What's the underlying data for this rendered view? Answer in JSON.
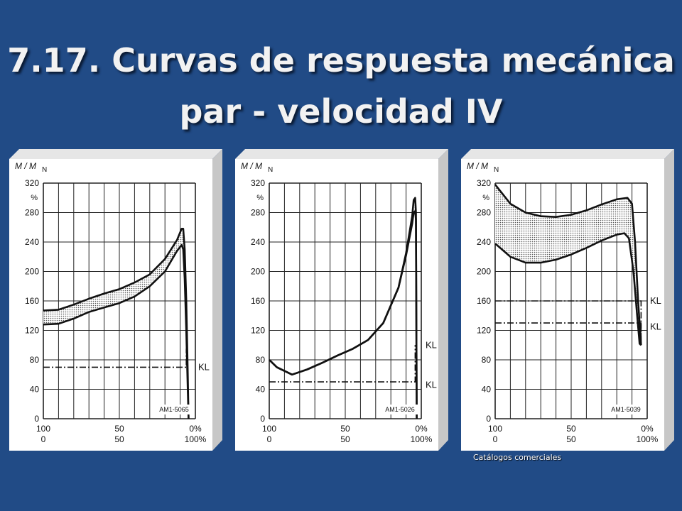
{
  "title": {
    "line1": "7.17. Curvas de respuesta mecánica",
    "line2": "par - velocidad IV"
  },
  "caption": "Catálogos comerciales",
  "colors": {
    "background": "#214b86",
    "panel": "#ffffff",
    "panel_edge": "#c7c7c7",
    "hatch": "#cfcfcf"
  },
  "axis_common": {
    "ylabel_main": "M / M",
    "ylabel_sub": "N",
    "percent_label": "%",
    "y_ticks": [
      "320",
      "280",
      "240",
      "200",
      "160",
      "120",
      "80",
      "40",
      "0"
    ],
    "x_ticks_top": [
      "100",
      "50",
      "0%"
    ],
    "x_ticks_bottom": [
      "0",
      "50",
      "100%"
    ]
  },
  "chart_data": [
    {
      "type": "area",
      "code": "AM1-5065",
      "ylim": [
        0,
        320
      ],
      "xlim": [
        0,
        100
      ],
      "grid": true,
      "x_axis": "speed % (bottom), slip % (top)",
      "upper_curve": [
        [
          0,
          147
        ],
        [
          10,
          148
        ],
        [
          20,
          155
        ],
        [
          30,
          163
        ],
        [
          40,
          170
        ],
        [
          50,
          176
        ],
        [
          60,
          185
        ],
        [
          70,
          196
        ],
        [
          80,
          217
        ],
        [
          88,
          243
        ],
        [
          91,
          258
        ],
        [
          92,
          258
        ],
        [
          93,
          230
        ],
        [
          94,
          160
        ],
        [
          95,
          60
        ],
        [
          95.5,
          0
        ]
      ],
      "lower_curve": [
        [
          0,
          128
        ],
        [
          10,
          129
        ],
        [
          20,
          136
        ],
        [
          30,
          145
        ],
        [
          40,
          151
        ],
        [
          50,
          157
        ],
        [
          60,
          166
        ],
        [
          70,
          180
        ],
        [
          80,
          200
        ],
        [
          88,
          228
        ],
        [
          91,
          236
        ],
        [
          92,
          230
        ],
        [
          93,
          190
        ],
        [
          94,
          120
        ],
        [
          95,
          40
        ],
        [
          95.5,
          0
        ]
      ],
      "load_curves": [
        {
          "label": "KL",
          "points": [
            [
              0,
              70
            ],
            [
              94,
              70
            ],
            [
              94,
              95
            ]
          ]
        }
      ]
    },
    {
      "type": "line",
      "code": "AM1-5026",
      "ylim": [
        0,
        320
      ],
      "xlim": [
        0,
        100
      ],
      "grid": true,
      "x_axis": "speed % (bottom), slip % (top)",
      "upper_curve": [
        [
          0,
          80
        ],
        [
          5,
          70
        ],
        [
          15,
          60
        ],
        [
          25,
          67
        ],
        [
          35,
          76
        ],
        [
          45,
          86
        ],
        [
          55,
          95
        ],
        [
          65,
          107
        ],
        [
          75,
          130
        ],
        [
          85,
          178
        ],
        [
          90,
          225
        ],
        [
          94,
          275
        ],
        [
          95,
          297
        ],
        [
          96,
          300
        ],
        [
          96.5,
          280
        ],
        [
          97,
          0
        ]
      ],
      "lower_curve": [
        [
          0,
          80
        ],
        [
          5,
          70
        ],
        [
          15,
          60
        ],
        [
          25,
          67
        ],
        [
          35,
          76
        ],
        [
          45,
          86
        ],
        [
          55,
          95
        ],
        [
          65,
          107
        ],
        [
          75,
          130
        ],
        [
          85,
          178
        ],
        [
          90,
          222
        ],
        [
          94,
          265
        ],
        [
          95,
          280
        ],
        [
          96,
          282
        ],
        [
          96.5,
          270
        ],
        [
          97,
          0
        ]
      ],
      "load_curves": [
        {
          "label": "KL",
          "points": [
            [
              0,
              50
            ],
            [
              96,
              50
            ],
            [
              96,
              100
            ]
          ]
        },
        {
          "label": "KL",
          "points": []
        }
      ]
    },
    {
      "type": "area",
      "code": "AM1-5039",
      "ylim": [
        0,
        320
      ],
      "xlim": [
        0,
        100
      ],
      "grid": true,
      "x_axis": "speed % (bottom), slip % (top)",
      "upper_curve": [
        [
          0,
          318
        ],
        [
          10,
          292
        ],
        [
          20,
          280
        ],
        [
          30,
          275
        ],
        [
          40,
          274
        ],
        [
          50,
          277
        ],
        [
          60,
          283
        ],
        [
          70,
          291
        ],
        [
          80,
          298
        ],
        [
          87,
          300
        ],
        [
          90,
          292
        ],
        [
          92,
          240
        ],
        [
          94,
          160
        ],
        [
          96,
          100
        ]
      ],
      "lower_curve": [
        [
          0,
          238
        ],
        [
          10,
          220
        ],
        [
          20,
          212
        ],
        [
          30,
          212
        ],
        [
          40,
          216
        ],
        [
          50,
          223
        ],
        [
          60,
          232
        ],
        [
          70,
          242
        ],
        [
          80,
          250
        ],
        [
          85,
          252
        ],
        [
          88,
          245
        ],
        [
          91,
          200
        ],
        [
          93,
          150
        ],
        [
          95,
          102
        ],
        [
          96,
          100
        ]
      ],
      "load_curves": [
        {
          "label": "KL",
          "points": [
            [
              0,
              160
            ],
            [
              96,
              160
            ],
            [
              96,
              100
            ]
          ]
        },
        {
          "label": "KL",
          "points": [
            [
              0,
              130
            ],
            [
              96,
              130
            ],
            [
              96,
              100
            ]
          ]
        }
      ]
    }
  ]
}
